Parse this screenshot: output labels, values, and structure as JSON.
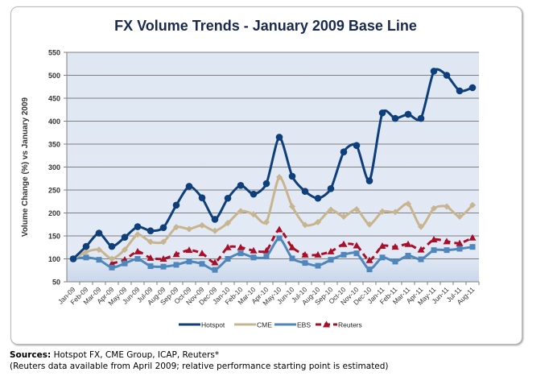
{
  "chart_data": {
    "type": "line",
    "title": "FX Volume Trends - January 2009 Base Line",
    "xlabel": "",
    "ylabel": "Volume Change (%) vs January 2009",
    "ylim": [
      50,
      550
    ],
    "yticks": [
      50,
      100,
      150,
      200,
      250,
      300,
      350,
      400,
      450,
      500,
      550
    ],
    "grid": true,
    "legend_position": "bottom",
    "categories": [
      "Jan-09",
      "Feb-09",
      "Mar-09",
      "Apr-09",
      "May-09",
      "Jun-09",
      "Jul-09",
      "Aug-09",
      "Sep-09",
      "Oct-09",
      "Nov-09",
      "Dec-09",
      "Jan-10",
      "Feb-10",
      "Mar-10",
      "Apr-10",
      "May-10",
      "Jun-10",
      "Jul-10",
      "Aug-10",
      "Sep-10",
      "Oct-10",
      "Nov-10",
      "Dec-10",
      "Jan-11",
      "Feb-11",
      "Mar-11",
      "Apr-11",
      "May-11",
      "Jun-11",
      "Jul-11",
      "Aug-11"
    ],
    "series": [
      {
        "name": "Hotspot",
        "color": "#0e3f7a",
        "marker": "circle",
        "dash": false,
        "values": [
          100,
          127,
          156,
          127,
          147,
          170,
          161,
          168,
          217,
          258,
          233,
          186,
          232,
          260,
          241,
          264,
          365,
          280,
          247,
          232,
          253,
          333,
          347,
          270,
          418,
          406,
          415,
          406,
          509,
          500,
          466,
          473
        ]
      },
      {
        "name": "CME",
        "color": "#c8b48e",
        "marker": "diamond",
        "dash": false,
        "values": [
          100,
          115,
          120,
          100,
          120,
          153,
          137,
          137,
          169,
          165,
          173,
          161,
          178,
          204,
          197,
          180,
          278,
          214,
          174,
          180,
          207,
          192,
          208,
          175,
          203,
          202,
          220,
          170,
          210,
          214,
          192,
          217
        ]
      },
      {
        "name": "EBS",
        "color": "#4f87bd",
        "marker": "square",
        "dash": false,
        "values": [
          100,
          103,
          98,
          81,
          90,
          100,
          84,
          83,
          87,
          94,
          89,
          76,
          100,
          112,
          103,
          105,
          145,
          101,
          91,
          85,
          98,
          109,
          112,
          77,
          103,
          94,
          107,
          99,
          119,
          119,
          122,
          126
        ]
      },
      {
        "name": "Reuters",
        "color": "#a8102a",
        "marker": "triangle",
        "dash": true,
        "values": [
          null,
          null,
          null,
          90,
          98,
          116,
          102,
          100,
          110,
          119,
          112,
          92,
          125,
          125,
          118,
          118,
          164,
          125,
          109,
          109,
          116,
          132,
          129,
          97,
          128,
          126,
          132,
          120,
          142,
          138,
          134,
          146
        ]
      }
    ]
  },
  "footer": {
    "sources_label": "Sources:",
    "sources_text": " Hotspot FX, CME Group, ICAP, Reuters*",
    "note": "(Reuters data available from April 2009; relative performance starting point is estimated)"
  }
}
